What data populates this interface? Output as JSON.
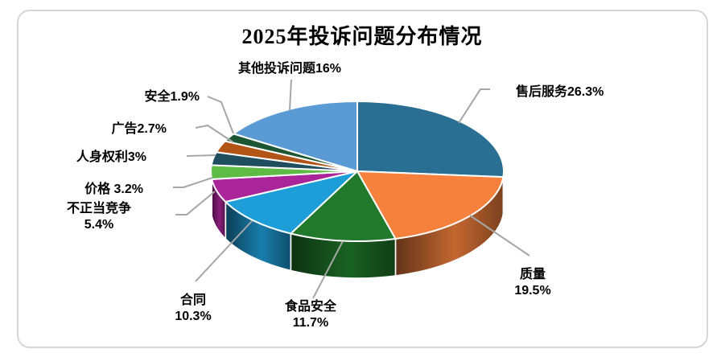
{
  "frame": {
    "background_color": "#FFFFFF",
    "border_color": "#D6D6D6"
  },
  "chart_data": {
    "type": "pie",
    "three_d": true,
    "title": "2025年投诉问题分布情况",
    "unit": "%",
    "start_angle_deg": 0,
    "direction": "clockwise",
    "legend": "none",
    "label_color": "#000000",
    "leader_line_color": "#A6A6A6",
    "slice_border_color": "#FFFFFF",
    "slices": [
      {
        "name": "售后服务",
        "value": 26.3,
        "label": "售后服务26.3%",
        "color": "#296F94"
      },
      {
        "name": "质量",
        "value": 19.5,
        "label": "质量\n19.5%",
        "color": "#F5813C"
      },
      {
        "name": "食品安全",
        "value": 11.7,
        "label": "食品安全\n11.7%",
        "color": "#217A2C"
      },
      {
        "name": "合同",
        "value": 10.3,
        "label": "合同\n10.3%",
        "color": "#1E9ED8"
      },
      {
        "name": "不正当竞争",
        "value": 5.4,
        "label": "不正当竞争\n5.4%",
        "color": "#AA249A"
      },
      {
        "name": "价格",
        "value": 3.2,
        "label": "价格 3.2%",
        "color": "#5EBB46"
      },
      {
        "name": "人身权利",
        "value": 3,
        "label": "人身权利3%",
        "color": "#1F4E5F"
      },
      {
        "name": "广告",
        "value": 2.7,
        "label": "广告2.7%",
        "color": "#B25416"
      },
      {
        "name": "安全",
        "value": 1.9,
        "label": "安全1.9%",
        "color": "#1D5632"
      },
      {
        "name": "其他投诉问题",
        "value": 16,
        "label": "其他投诉问题16%",
        "color": "#5B9BD5"
      }
    ]
  }
}
